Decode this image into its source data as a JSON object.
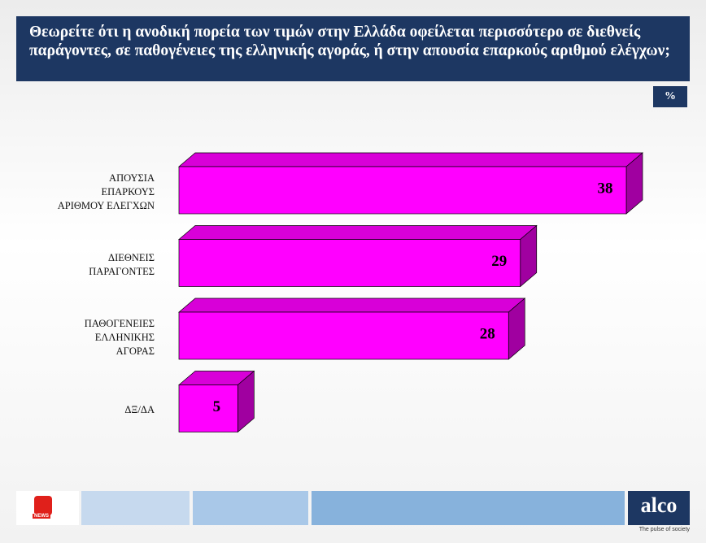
{
  "chart_data": {
    "type": "bar3d",
    "title": "Θεωρείτε ότι η ανοδική πορεία των τιμών στην Ελλάδα οφείλεται περισσότερο σε διεθνείς παράγοντες, σε παθογένειες της ελληνικής αγοράς, ή στην απουσία επαρκούς αριθμού ελέγχων;",
    "unit_badge": "%",
    "categories": [
      "ΑΠΟΥΣΙΑ\nΕΠΑΡΚΟΥΣ\nΑΡΙΘΜΟΥ ΕΛΕΓΧΩΝ",
      "ΔΙΕΘΝΕΙΣ\nΠΑΡΑΓΟΝΤΕΣ",
      "ΠΑΘΟΓΕΝΕΙΕΣ\nΕΛΛΗΝΙΚΗΣ\nΑΓΟΡΑΣ",
      "ΔΞ/ΔΑ"
    ],
    "values": [
      38,
      29,
      28,
      5
    ],
    "color": "#ff00ff"
  },
  "footer": {
    "logo": "NEWS",
    "brand": "alco",
    "tagline": "The pulse of society"
  }
}
